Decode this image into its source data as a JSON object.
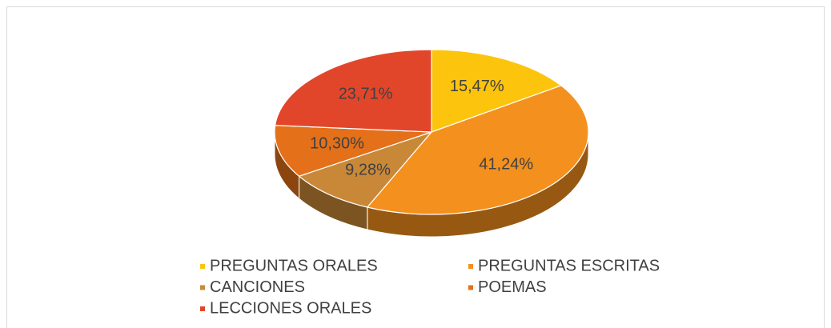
{
  "chart_data": {
    "type": "pie",
    "categories": [
      "PREGUNTAS ORALES",
      "PREGUNTAS ESCRITAS",
      "CANCIONES",
      "POEMAS",
      "LECCIONES ORALES"
    ],
    "values": [
      15.47,
      41.24,
      9.28,
      10.3,
      23.71
    ],
    "value_labels": [
      "15,47%",
      "41,24%",
      "9,28%",
      "10,30%",
      "23,71%"
    ],
    "colors": [
      "#fcc40c",
      "#f4901e",
      "#c98838",
      "#e4701a",
      "#e2462a"
    ],
    "legend": "bottom"
  }
}
